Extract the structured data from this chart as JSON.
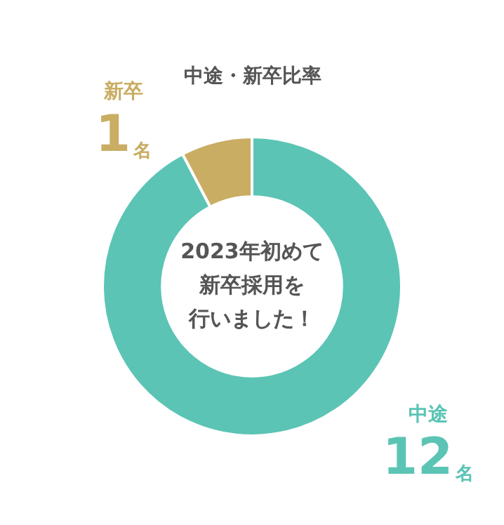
{
  "chart_data": {
    "type": "donut",
    "title": "中途・新卒比率",
    "categories": [
      "中途",
      "新卒"
    ],
    "values": [
      12,
      1
    ],
    "colors": [
      "#5bc4b5",
      "#c9ad62"
    ],
    "value_labels": [
      "12名",
      "1名"
    ],
    "annotations": [
      "2023年初めて",
      "新卒採用を",
      "行いました！"
    ],
    "legend": false
  }
}
